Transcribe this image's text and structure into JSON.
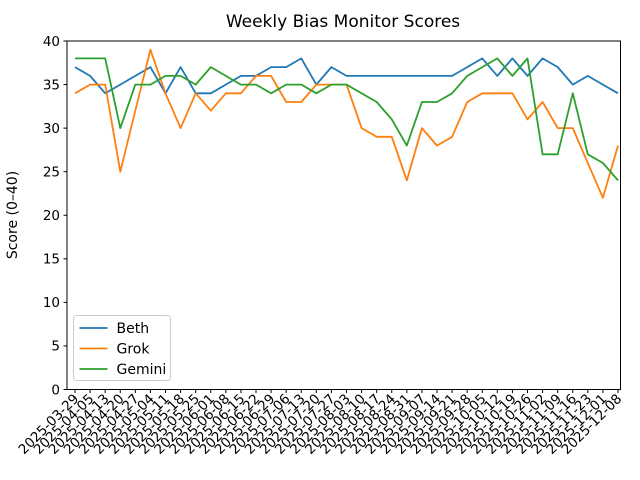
{
  "chart_data": {
    "type": "line",
    "title": "Weekly Bias Monitor Scores",
    "ylabel": "Score (0–40)",
    "xlabel": "",
    "ylim": [
      0,
      40
    ],
    "yticks": [
      0,
      5,
      10,
      15,
      20,
      25,
      30,
      35,
      40
    ],
    "grid": false,
    "legend_position": "lower left",
    "tick_label_rotation": 45,
    "categories": [
      "2025-03-29",
      "2025-04-05",
      "2025-04-13",
      "2025-04-20",
      "2025-04-27",
      "2025-05-04",
      "2025-05-11",
      "2025-05-18",
      "2025-05-25",
      "2025-06-01",
      "2025-06-08",
      "2025-06-15",
      "2025-06-22",
      "2025-06-29",
      "2025-07-06",
      "2025-07-13",
      "2025-07-20",
      "2025-07-27",
      "2025-08-03",
      "2025-08-10",
      "2025-08-17",
      "2025-08-24",
      "2025-08-31",
      "2025-09-07",
      "2025-09-14",
      "2025-09-21",
      "2025-09-28",
      "2025-10-05",
      "2025-10-12",
      "2025-10-19",
      "2025-10-26",
      "2025-11-02",
      "2025-11-09",
      "2025-11-16",
      "2025-11-23",
      "2025-12-01",
      "2025-12-08"
    ],
    "series": [
      {
        "name": "Beth",
        "color": "#1f77b4",
        "values": [
          37,
          36,
          34,
          35,
          36,
          37,
          34,
          37,
          34,
          34,
          35,
          36,
          36,
          37,
          37,
          38,
          35,
          37,
          36,
          36,
          36,
          36,
          36,
          36,
          36,
          36,
          37,
          38,
          36,
          38,
          36,
          38,
          37,
          35,
          36,
          35,
          34
        ]
      },
      {
        "name": "Grok",
        "color": "#ff7f0e",
        "values": [
          34,
          35,
          35,
          25,
          32,
          39,
          34,
          30,
          34,
          32,
          34,
          34,
          36,
          36,
          33,
          33,
          35,
          35,
          35,
          30,
          29,
          29,
          24,
          30,
          28,
          29,
          33,
          34,
          34,
          34,
          31,
          33,
          30,
          30,
          26,
          22,
          28
        ]
      },
      {
        "name": "Gemini",
        "color": "#2ca02c",
        "values": [
          38,
          38,
          38,
          30,
          35,
          35,
          36,
          36,
          35,
          37,
          36,
          35,
          35,
          34,
          35,
          35,
          34,
          35,
          35,
          34,
          33,
          31,
          28,
          33,
          33,
          34,
          36,
          37,
          38,
          36,
          38,
          27,
          27,
          34,
          27,
          26,
          24
        ]
      }
    ]
  },
  "colors": {
    "axis": "#000000",
    "background": "#ffffff",
    "legend_border": "#cccccc"
  }
}
